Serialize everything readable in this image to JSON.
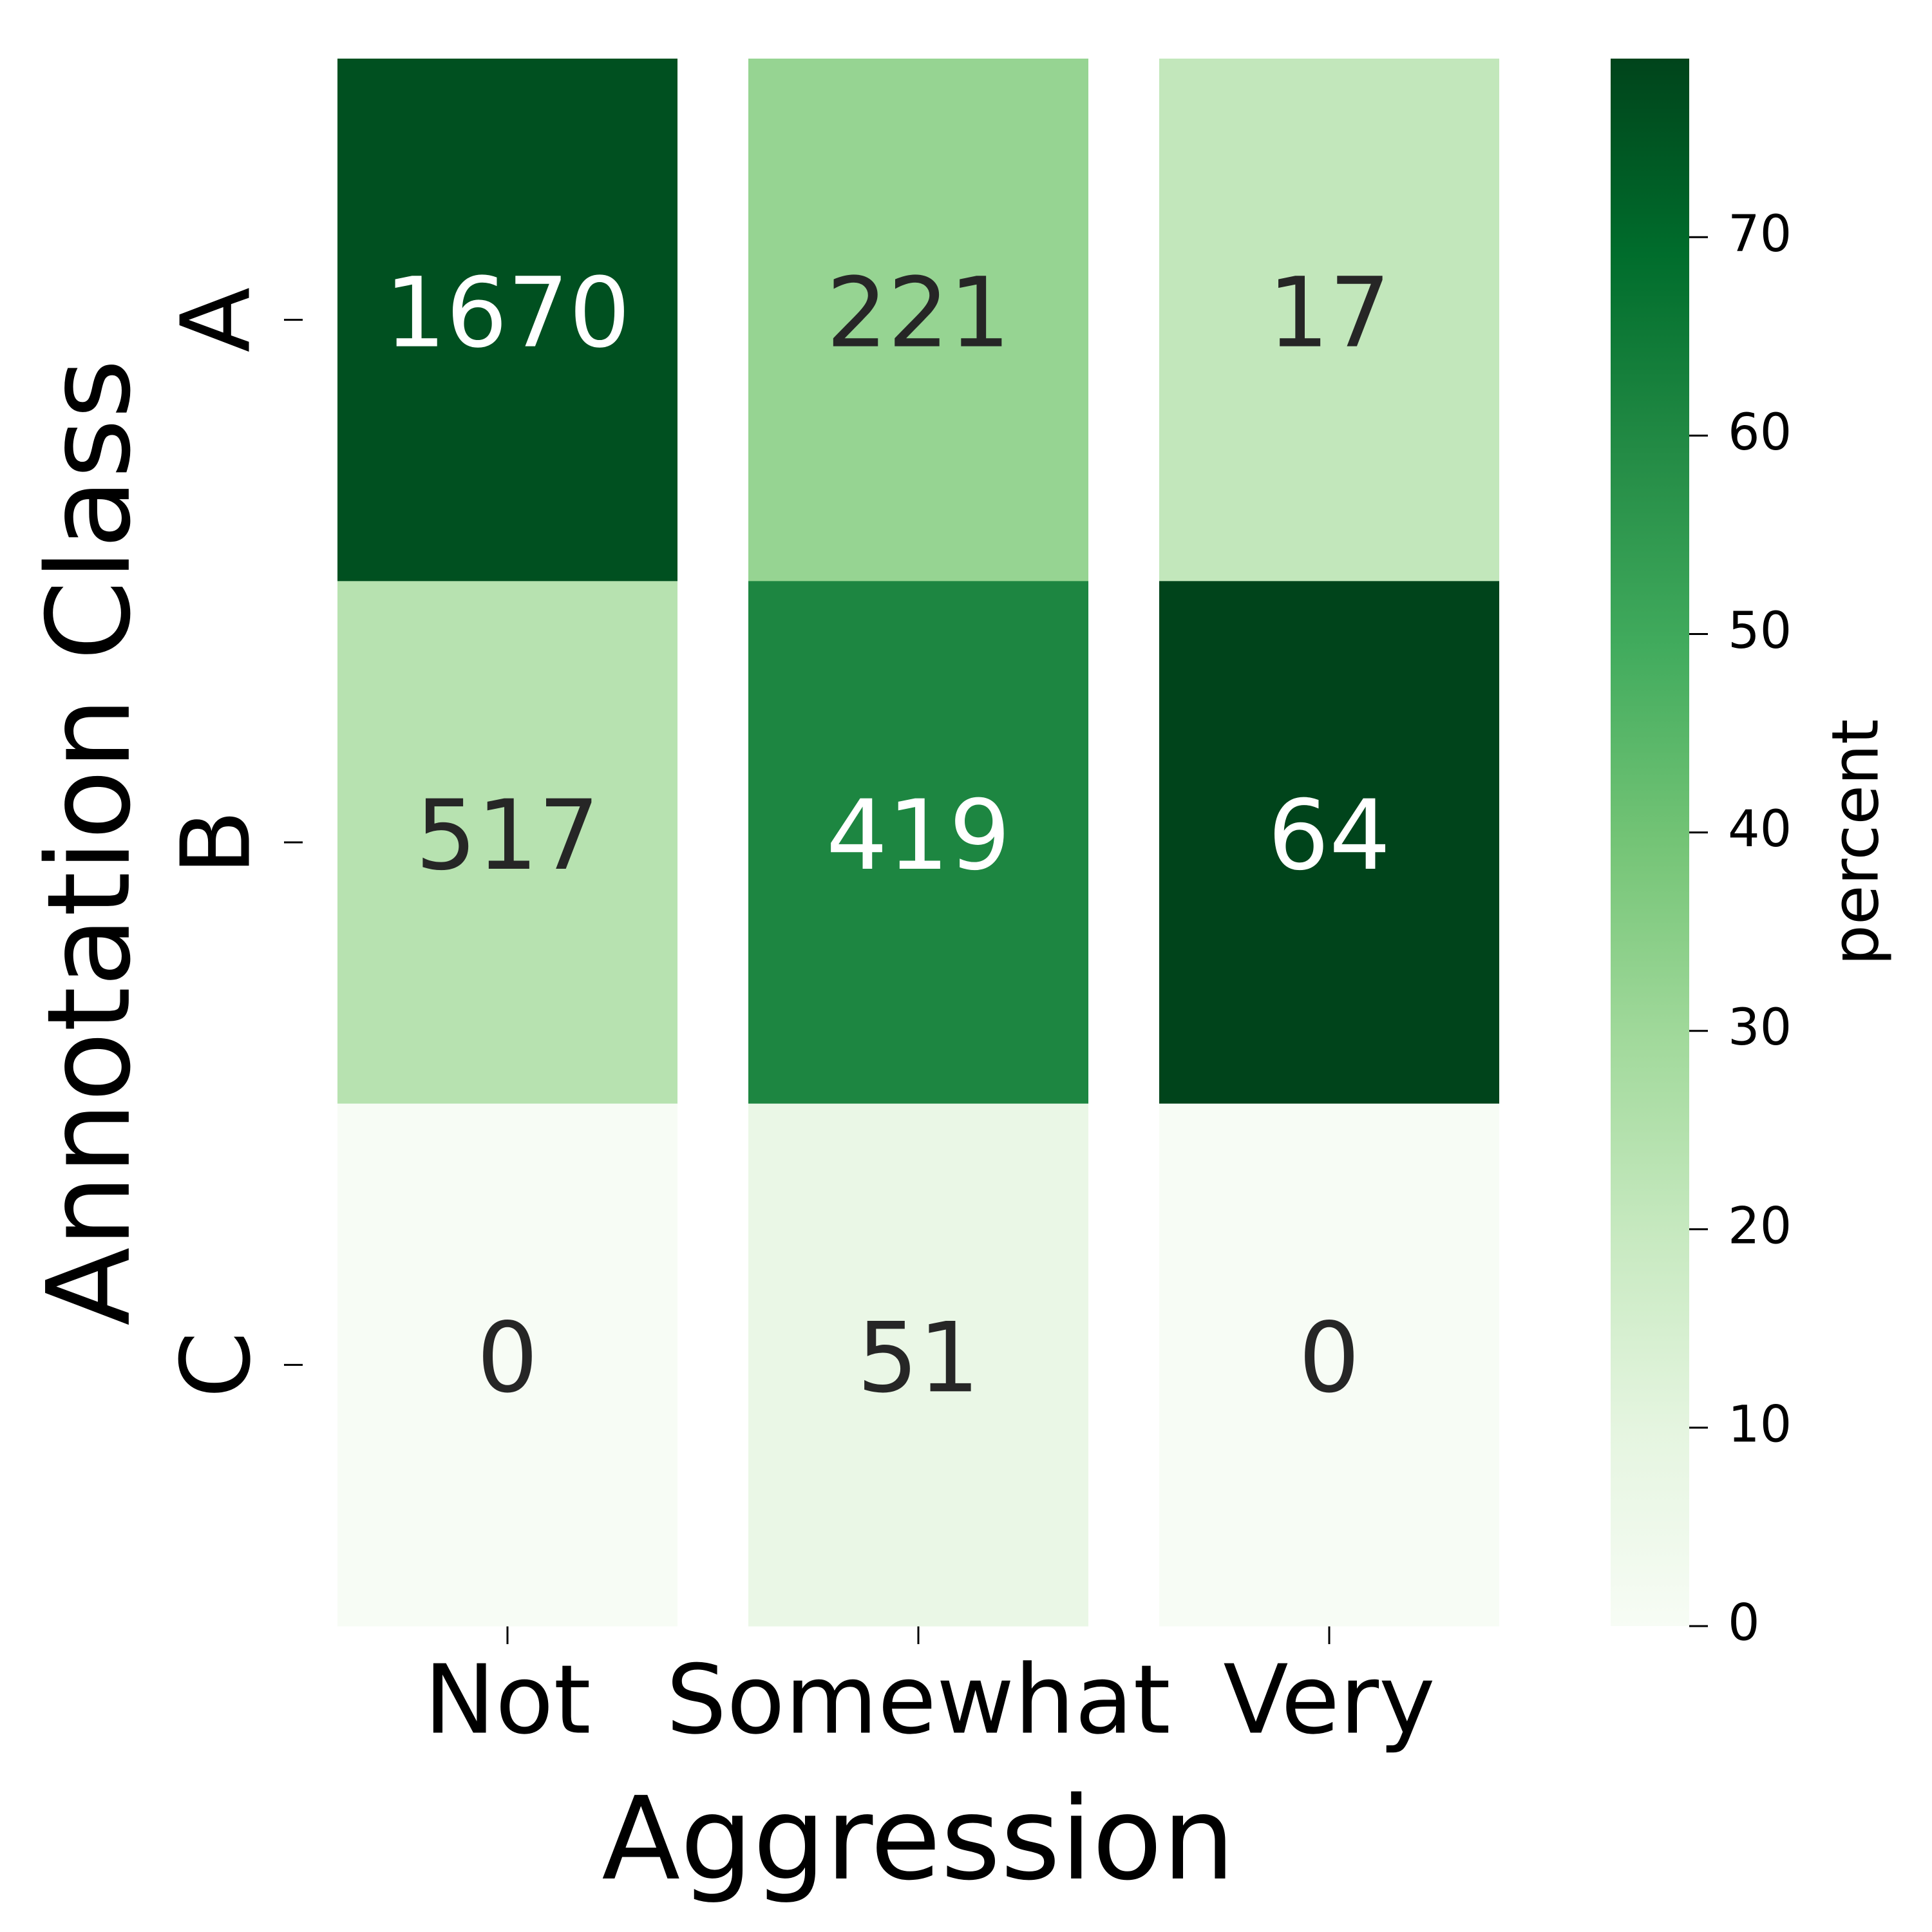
{
  "chart_data": {
    "type": "heatmap",
    "xlabel": "Aggression",
    "ylabel": "Annotation Class",
    "x": [
      "Not",
      "Somewhat",
      "Very"
    ],
    "y": [
      "A",
      "B",
      "C"
    ],
    "values": [
      [
        1670,
        221,
        17
      ],
      [
        517,
        419,
        64
      ],
      [
        0,
        51,
        0
      ]
    ],
    "percent": [
      [
        76,
        32,
        21
      ],
      [
        24,
        61,
        79
      ],
      [
        0,
        7,
        0
      ]
    ],
    "colorbar_label": "percent",
    "zlim": [
      0,
      79
    ],
    "zticks": [
      0,
      10,
      20,
      30,
      40,
      50,
      60,
      70
    ],
    "colors": [
      "#f7fcf5",
      "#e5f5e0",
      "#c7e9c0",
      "#a1d99b",
      "#74c476",
      "#41ab5d",
      "#238b45",
      "#006d2c",
      "#00441b"
    ]
  }
}
